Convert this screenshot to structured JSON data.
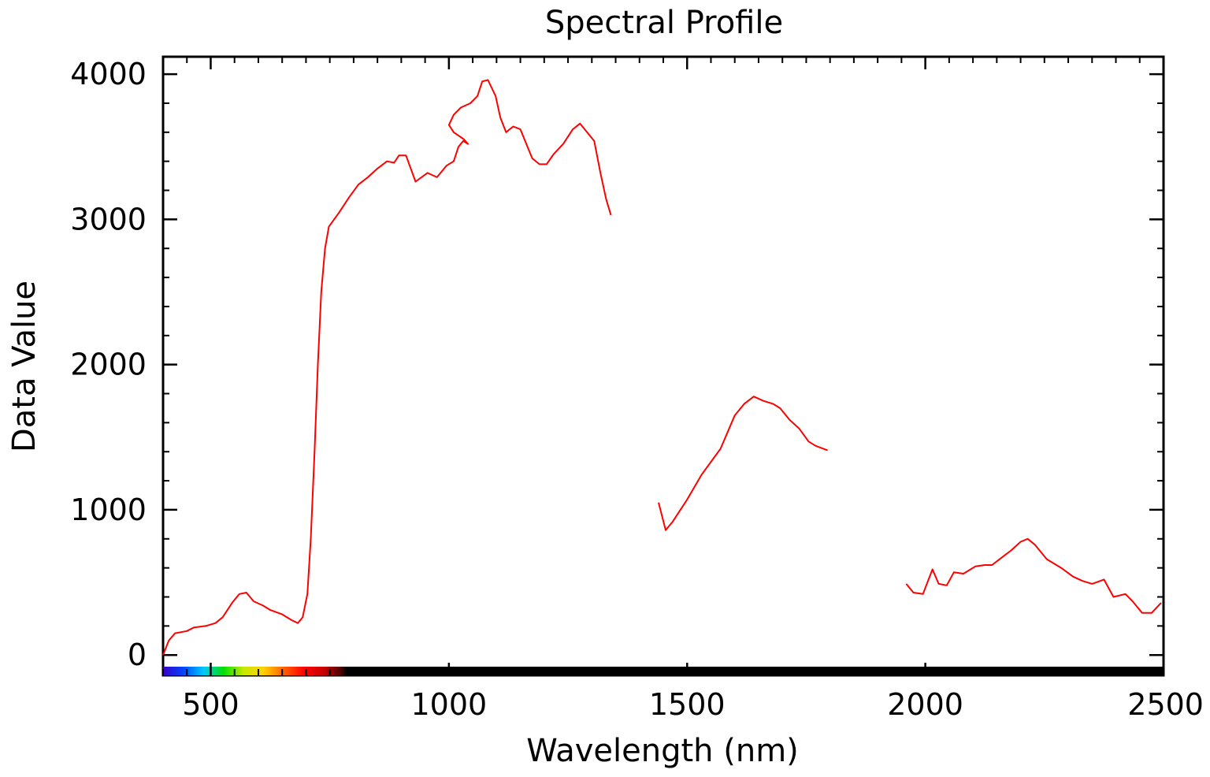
{
  "chart_data": {
    "type": "line",
    "title": "Spectral Profile",
    "xlabel": "Wavelength (nm)",
    "ylabel": "Data Value",
    "xlim": [
      400,
      2500
    ],
    "ylim": [
      -140,
      4120
    ],
    "x_ticks": [
      500,
      1000,
      1500,
      2000,
      2500
    ],
    "y_ticks": [
      0,
      1000,
      2000,
      3000,
      4000
    ],
    "x_minor_step": 50,
    "y_minor_step": 200,
    "grid": false,
    "line_color": "#ff0000",
    "spectrum_bar": {
      "range_nm": [
        400,
        780
      ],
      "colors": [
        "#3a00c8",
        "#0044ff",
        "#00c8ff",
        "#00e000",
        "#c8e800",
        "#ffd000",
        "#ff6000",
        "#ff0000",
        "#c80000",
        "#300000"
      ]
    },
    "series": [
      {
        "segments": [
          [
            [
              400,
              0
            ],
            [
              412,
              100
            ],
            [
              425,
              150
            ],
            [
              450,
              165
            ],
            [
              465,
              190
            ],
            [
              490,
              200
            ],
            [
              510,
              220
            ],
            [
              525,
              260
            ],
            [
              545,
              360
            ],
            [
              560,
              420
            ],
            [
              575,
              430
            ],
            [
              590,
              370
            ],
            [
              610,
              340
            ],
            [
              625,
              310
            ],
            [
              650,
              280
            ],
            [
              670,
              240
            ],
            [
              683,
              220
            ],
            [
              693,
              260
            ],
            [
              703,
              420
            ],
            [
              710,
              800
            ],
            [
              718,
              1400
            ],
            [
              725,
              2000
            ],
            [
              732,
              2500
            ],
            [
              740,
              2800
            ],
            [
              748,
              2950
            ],
            [
              770,
              3050
            ],
            [
              790,
              3150
            ],
            [
              810,
              3240
            ],
            [
              830,
              3290
            ],
            [
              850,
              3350
            ],
            [
              870,
              3400
            ],
            [
              885,
              3390
            ],
            [
              895,
              3440
            ],
            [
              910,
              3440
            ],
            [
              930,
              3260
            ],
            [
              955,
              3320
            ],
            [
              975,
              3290
            ],
            [
              995,
              3370
            ],
            [
              1010,
              3400
            ],
            [
              1020,
              3500
            ],
            [
              1030,
              3540
            ],
            [
              1040,
              3520
            ],
            [
              1032,
              3550
            ],
            [
              1010,
              3600
            ],
            [
              1000,
              3650
            ],
            [
              1010,
              3720
            ],
            [
              1025,
              3770
            ],
            [
              1045,
              3800
            ],
            [
              1060,
              3850
            ],
            [
              1070,
              3950
            ],
            [
              1082,
              3960
            ],
            [
              1098,
              3850
            ],
            [
              1108,
              3700
            ],
            [
              1120,
              3600
            ],
            [
              1135,
              3640
            ],
            [
              1150,
              3620
            ],
            [
              1165,
              3500
            ],
            [
              1175,
              3420
            ],
            [
              1190,
              3380
            ],
            [
              1205,
              3380
            ],
            [
              1220,
              3450
            ],
            [
              1240,
              3520
            ],
            [
              1260,
              3620
            ],
            [
              1275,
              3660
            ],
            [
              1290,
              3600
            ],
            [
              1305,
              3540
            ],
            [
              1318,
              3320
            ],
            [
              1330,
              3140
            ],
            [
              1340,
              3030
            ]
          ],
          [
            [
              1440,
              1050
            ],
            [
              1455,
              860
            ],
            [
              1470,
              920
            ],
            [
              1500,
              1070
            ],
            [
              1530,
              1240
            ],
            [
              1570,
              1420
            ],
            [
              1600,
              1650
            ],
            [
              1620,
              1730
            ],
            [
              1640,
              1780
            ],
            [
              1660,
              1750
            ],
            [
              1680,
              1730
            ],
            [
              1695,
              1700
            ],
            [
              1715,
              1620
            ],
            [
              1735,
              1560
            ],
            [
              1755,
              1470
            ],
            [
              1770,
              1440
            ],
            [
              1795,
              1410
            ]
          ],
          [
            [
              1960,
              490
            ],
            [
              1975,
              430
            ],
            [
              1995,
              420
            ],
            [
              2015,
              590
            ],
            [
              2028,
              490
            ],
            [
              2045,
              480
            ],
            [
              2060,
              570
            ],
            [
              2080,
              560
            ],
            [
              2105,
              610
            ],
            [
              2125,
              620
            ],
            [
              2140,
              620
            ],
            [
              2160,
              670
            ],
            [
              2180,
              720
            ],
            [
              2200,
              780
            ],
            [
              2215,
              800
            ],
            [
              2230,
              760
            ],
            [
              2255,
              660
            ],
            [
              2285,
              600
            ],
            [
              2310,
              540
            ],
            [
              2330,
              510
            ],
            [
              2350,
              490
            ],
            [
              2375,
              520
            ],
            [
              2395,
              400
            ],
            [
              2420,
              420
            ],
            [
              2435,
              370
            ],
            [
              2455,
              290
            ],
            [
              2475,
              290
            ],
            [
              2495,
              360
            ]
          ]
        ]
      }
    ]
  }
}
